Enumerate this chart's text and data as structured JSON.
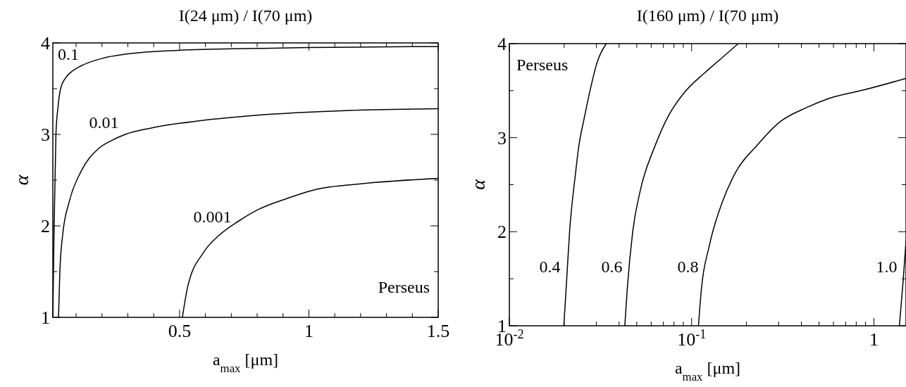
{
  "chart_data": [
    {
      "type": "line",
      "title": "I(24 μm) / I(70 μm)",
      "xlabel": "a$_{max}$ [μm]",
      "ylabel": "α",
      "xlim": [
        0.01,
        1.5
      ],
      "ylim": [
        1,
        4
      ],
      "xticks": [
        {
          "value": 0.1,
          "label": null
        },
        {
          "value": 0.2,
          "label": null
        },
        {
          "value": 0.3,
          "label": null
        },
        {
          "value": 0.4,
          "label": null
        },
        0.5,
        {
          "value": 0.6,
          "label": null
        },
        {
          "value": 0.7,
          "label": null
        },
        {
          "value": 0.8,
          "label": null
        },
        {
          "value": 0.9,
          "label": null
        },
        1,
        {
          "value": 1.1,
          "label": null
        },
        {
          "value": 1.2,
          "label": null
        },
        {
          "value": 1.3,
          "label": null
        },
        {
          "value": 1.4,
          "label": null
        },
        1.5
      ],
      "yticks": [
        1,
        {
          "value": 1.5,
          "label": null
        },
        2,
        {
          "value": 2.5,
          "label": null
        },
        3,
        {
          "value": 3.5,
          "label": null
        },
        4
      ],
      "series": [
        {
          "name": "0.1",
          "color": "#000000",
          "x": [
            0.01,
            0.015,
            0.022,
            0.03,
            0.04,
            0.06,
            0.08,
            0.12,
            0.2,
            0.3,
            0.5,
            0.8,
            1.0,
            1.5
          ],
          "values": [
            1,
            2,
            3,
            3.3,
            3.5,
            3.62,
            3.68,
            3.75,
            3.83,
            3.88,
            3.92,
            3.94,
            3.95,
            3.96
          ]
        },
        {
          "name": "0.01",
          "color": "#000000",
          "x": [
            0.032,
            0.037,
            0.048,
            0.074,
            0.118,
            0.185,
            0.235,
            0.29,
            0.39,
            0.58,
            0.8,
            1.14,
            1.5
          ],
          "values": [
            1,
            1.49,
            1.9,
            2.27,
            2.59,
            2.84,
            2.93,
            3.0,
            3.07,
            3.15,
            3.21,
            3.26,
            3.28
          ]
        },
        {
          "name": "0.001",
          "color": "#000000",
          "x": [
            0.511,
            0.531,
            0.593,
            0.654,
            0.727,
            0.805,
            0.916,
            1.03,
            1.2,
            1.5
          ],
          "values": [
            1,
            1.33,
            1.71,
            1.9,
            2.05,
            2.18,
            2.3,
            2.4,
            2.46,
            2.52
          ]
        }
      ],
      "annotations": [
        "Perseus"
      ]
    },
    {
      "type": "line",
      "title": "I(160 μm) / I(70 μm)",
      "xlabel": "a$_{max}$ [μm]",
      "ylabel": "α",
      "log": "x",
      "xlim": [
        0.01,
        1.5
      ],
      "ylim": [
        1,
        4
      ],
      "xticks": [
        {
          "value": 0.01,
          "label": "10$^{-2}$"
        },
        {
          "value": 0.02,
          "label": null
        },
        {
          "value": 0.03,
          "label": null
        },
        {
          "value": 0.04,
          "label": null
        },
        {
          "value": 0.05,
          "label": null
        },
        {
          "value": 0.06,
          "label": null
        },
        {
          "value": 0.07,
          "label": null
        },
        {
          "value": 0.08,
          "label": null
        },
        {
          "value": 0.09,
          "label": null
        },
        {
          "value": 0.1,
          "label": "10$^{-1}$"
        },
        {
          "value": 0.2,
          "label": null
        },
        {
          "value": 0.3,
          "label": null
        },
        {
          "value": 0.4,
          "label": null
        },
        {
          "value": 0.5,
          "label": null
        },
        {
          "value": 0.6,
          "label": null
        },
        {
          "value": 0.7,
          "label": null
        },
        {
          "value": 0.8,
          "label": null
        },
        {
          "value": 0.9,
          "label": null
        },
        1
      ],
      "yticks": [
        1,
        {
          "value": 1.5,
          "label": null
        },
        2,
        {
          "value": 2.5,
          "label": null
        },
        3,
        {
          "value": 3.5,
          "label": null
        },
        4
      ],
      "series": [
        {
          "name": "0.4",
          "color": "#000000",
          "x": [
            0.0199,
            0.0205,
            0.0214,
            0.023,
            0.024,
            0.0257,
            0.0277,
            0.0303,
            0.034
          ],
          "values": [
            1,
            1.4,
            2,
            2.6,
            2.9,
            3.2,
            3.5,
            3.8,
            4
          ]
        },
        {
          "name": "0.6",
          "color": "#000000",
          "x": [
            0.043,
            0.0443,
            0.0475,
            0.0526,
            0.0632,
            0.0745,
            0.0912,
            0.118,
            0.147,
            0.18
          ],
          "values": [
            1,
            1.38,
            2.0,
            2.46,
            2.92,
            3.23,
            3.48,
            3.69,
            3.85,
            4
          ]
        },
        {
          "name": "0.8",
          "color": "#000000",
          "x": [
            0.109,
            0.113,
            0.125,
            0.147,
            0.173,
            0.229,
            0.306,
            0.427,
            0.573,
            0.889,
            1.5
          ],
          "values": [
            1,
            1.38,
            1.85,
            2.31,
            2.62,
            2.92,
            3.17,
            3.32,
            3.42,
            3.51,
            3.63
          ]
        },
        {
          "name": "1.0",
          "color": "#000000",
          "x": [
            1.38,
            1.45,
            1.5
          ],
          "values": [
            1,
            1.5,
            1.9
          ]
        }
      ],
      "annotations": [
        "Perseus"
      ]
    }
  ]
}
